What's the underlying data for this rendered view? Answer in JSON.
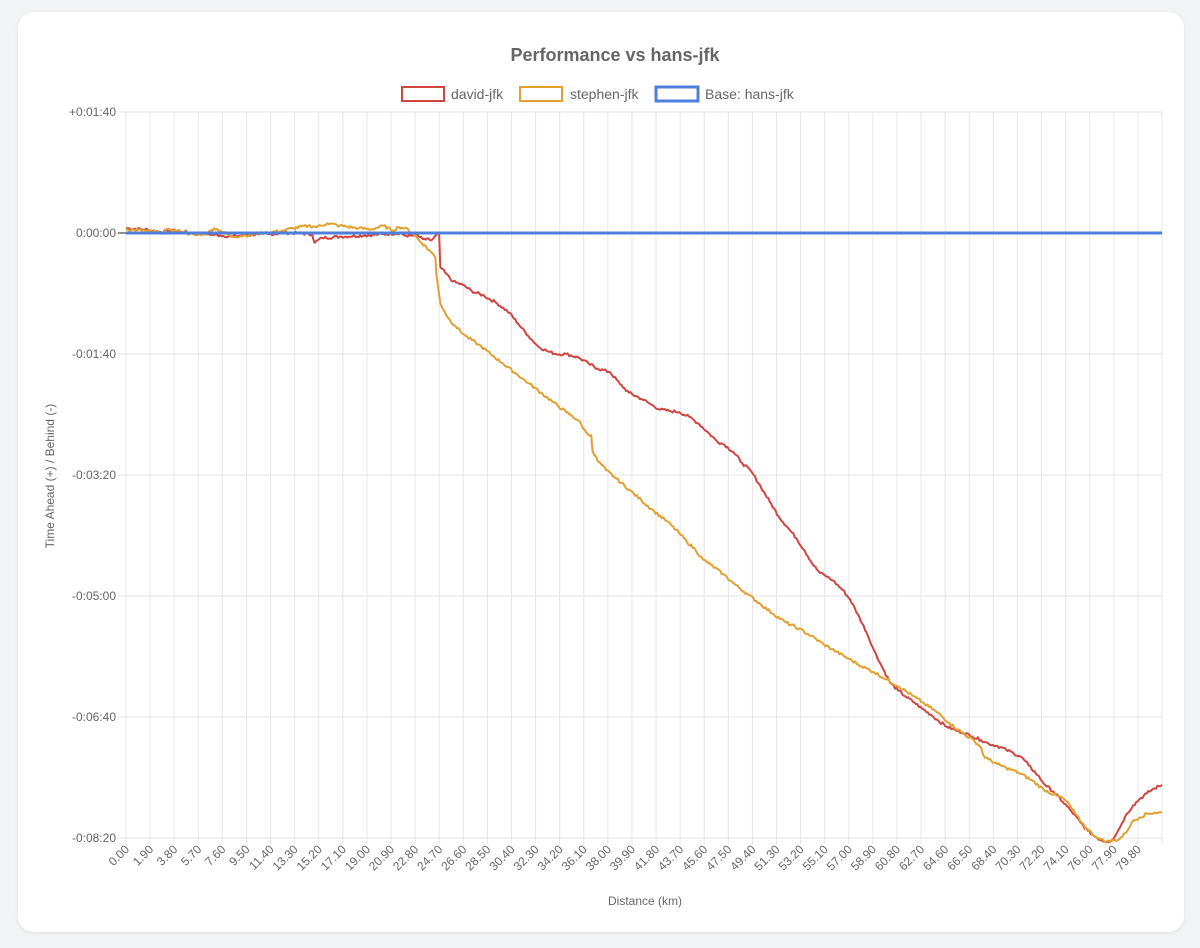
{
  "chart_data": {
    "type": "line",
    "title": "Performance vs hans-jfk",
    "xlabel": "Distance (km)",
    "ylabel": "Time Ahead (+) / Behind (-)",
    "x_unit": "km",
    "y_unit": "seconds",
    "xlim": [
      0,
      82.4
    ],
    "ylim": [
      -500,
      100
    ],
    "x_ticks": [
      "0.00",
      "1.90",
      "3.80",
      "5.70",
      "7.60",
      "9.50",
      "11.40",
      "13.30",
      "15.20",
      "17.10",
      "19.00",
      "20.90",
      "22.80",
      "24.70",
      "26.60",
      "28.50",
      "30.40",
      "32.30",
      "34.20",
      "36.10",
      "38.00",
      "39.90",
      "41.80",
      "43.70",
      "45.60",
      "47.50",
      "49.40",
      "51.30",
      "53.20",
      "55.10",
      "57.00",
      "58.90",
      "60.80",
      "62.70",
      "64.60",
      "66.50",
      "68.40",
      "70.30",
      "72.20",
      "74.10",
      "76.00",
      "77.90",
      "79.80"
    ],
    "y_ticks": [
      {
        "value": 100,
        "label": "+0:01:40"
      },
      {
        "value": 0,
        "label": "0:00:00"
      },
      {
        "value": -100,
        "label": "-0:01:40"
      },
      {
        "value": -200,
        "label": "-0:03:20"
      },
      {
        "value": -300,
        "label": "-0:05:00"
      },
      {
        "value": -400,
        "label": "-0:06:40"
      },
      {
        "value": -500,
        "label": "-0:08:20"
      }
    ],
    "grid": true,
    "legend_position": "top",
    "series": [
      {
        "name": "david-jfk",
        "color": "#d0463f",
        "x": [
          0,
          1.5,
          2.7,
          3.5,
          4.5,
          5.5,
          6.5,
          7.5,
          8.4,
          9.3,
          10.5,
          11.4,
          12.5,
          13.6,
          14.8,
          15.0,
          15.6,
          17.0,
          19.0,
          20.5,
          21.8,
          22.4,
          23.0,
          23.6,
          24.3,
          24.9,
          25.0,
          25.4,
          26.0,
          26.8,
          27.5,
          28.5,
          29.5,
          30.5,
          31.2,
          32.0,
          32.8,
          33.6,
          34.2,
          35.0,
          36.0,
          36.8,
          37.5,
          38.5,
          39.3,
          40.0,
          41.0,
          41.8,
          42.5,
          43.2,
          44.0,
          44.8,
          45.6,
          46.3,
          47.0,
          47.6,
          48.3,
          49.0,
          49.8,
          50.5,
          51.2,
          51.9,
          52.6,
          53.3,
          54.0,
          54.7,
          55.2,
          55.6,
          56.2,
          57.0,
          57.6,
          58.2,
          58.9,
          59.5,
          60.2,
          60.8,
          61.4,
          62.0,
          62.7,
          63.3,
          64.0,
          64.6,
          65.3,
          66.0,
          66.6,
          67.3,
          68.0,
          68.6,
          69.3,
          70.0,
          70.6,
          71.2,
          71.8,
          72.5,
          73.1,
          73.8,
          74.5,
          75.2,
          75.9,
          76.5,
          77.1,
          77.6,
          78.0,
          78.4,
          78.8,
          79.2,
          79.6,
          80.1,
          80.6,
          81.2,
          81.8,
          82.4
        ],
        "y": [
          4,
          3,
          1,
          2,
          1,
          0,
          -1,
          -2,
          -3,
          -2,
          -1,
          -1,
          0,
          0,
          -1,
          -8,
          -4,
          -3,
          -2,
          -1,
          0,
          -3,
          -1,
          -5,
          -6,
          0,
          -28,
          -33,
          -40,
          -43,
          -48,
          -52,
          -58,
          -66,
          -75,
          -85,
          -94,
          -98,
          -100,
          -100,
          -103,
          -108,
          -112,
          -115,
          -125,
          -132,
          -137,
          -142,
          -146,
          -147,
          -148,
          -152,
          -158,
          -165,
          -172,
          -175,
          -181,
          -190,
          -198,
          -210,
          -222,
          -234,
          -243,
          -252,
          -263,
          -275,
          -281,
          -283,
          -287,
          -295,
          -303,
          -315,
          -330,
          -345,
          -360,
          -372,
          -378,
          -383,
          -388,
          -393,
          -398,
          -403,
          -408,
          -411,
          -413,
          -416,
          -419,
          -422,
          -424,
          -427,
          -430,
          -433,
          -440,
          -448,
          -456,
          -462,
          -470,
          -478,
          -487,
          -494,
          -499,
          -502,
          -503,
          -502,
          -496,
          -488,
          -480,
          -473,
          -468,
          -463,
          -459,
          -456
        ]
      },
      {
        "name": "stephen-jfk",
        "color": "#e2a030",
        "x": [
          0,
          1.5,
          2.7,
          3.5,
          4.5,
          5.5,
          6.5,
          7.0,
          7.5,
          8.4,
          9.5,
          11.0,
          12.5,
          13.3,
          14.5,
          15.2,
          16.0,
          17.0,
          18.5,
          19.5,
          20.5,
          21.2,
          21.7,
          22.2,
          22.8,
          23.5,
          24.3,
          24.6,
          24.7,
          25.0,
          25.6,
          26.2,
          27.0,
          28.0,
          29.0,
          30.0,
          31.0,
          32.0,
          33.0,
          34.0,
          35.0,
          36.0,
          36.6,
          37.0,
          37.1,
          37.5,
          38.2,
          39.0,
          40.0,
          41.0,
          42.0,
          43.0,
          44.0,
          44.6,
          45.3,
          45.9,
          46.5,
          47.5,
          48.5,
          49.5,
          50.5,
          51.5,
          52.5,
          53.5,
          54.5,
          55.5,
          56.5,
          57.5,
          58.5,
          59.5,
          60.5,
          61.5,
          62.5,
          63.5,
          64.5,
          65.5,
          66.5,
          67.5,
          68.0,
          68.2,
          68.6,
          69.3,
          70.0,
          71.0,
          72.0,
          73.0,
          74.0,
          74.5,
          75.0,
          75.5,
          76.0,
          76.5,
          77.0,
          77.5,
          78.0,
          78.5,
          79.0,
          79.5,
          80.0,
          80.6,
          81.2,
          81.8,
          82.4
        ],
        "y": [
          3,
          2,
          0,
          3,
          1,
          -2,
          0,
          4,
          2,
          -3,
          -2,
          0,
          2,
          4,
          6,
          5,
          8,
          6,
          4,
          3,
          6,
          2,
          5,
          4,
          0,
          -8,
          -16,
          -20,
          -35,
          -58,
          -70,
          -77,
          -85,
          -92,
          -100,
          -108,
          -116,
          -124,
          -132,
          -140,
          -148,
          -155,
          -165,
          -167,
          -180,
          -188,
          -196,
          -203,
          -212,
          -221,
          -230,
          -238,
          -248,
          -255,
          -262,
          -270,
          -274,
          -282,
          -291,
          -299,
          -307,
          -315,
          -322,
          -327,
          -333,
          -340,
          -346,
          -352,
          -358,
          -363,
          -369,
          -375,
          -382,
          -389,
          -396,
          -405,
          -413,
          -420,
          -425,
          -432,
          -435,
          -439,
          -442,
          -446,
          -452,
          -460,
          -465,
          -467,
          -472,
          -480,
          -487,
          -493,
          -498,
          -501,
          -503,
          -502,
          -501,
          -496,
          -487,
          -483,
          -480,
          -479,
          -479
        ]
      },
      {
        "name": "Base: hans-jfk",
        "color": "#4e7fde",
        "x": [
          0,
          82.4
        ],
        "y": [
          0,
          0
        ]
      }
    ]
  }
}
